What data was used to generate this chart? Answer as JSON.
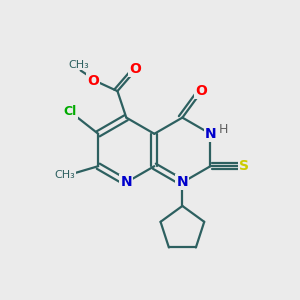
{
  "bg_color": "#ebebeb",
  "bond_color": "#2d6060",
  "atom_colors": {
    "O": "#ff0000",
    "N": "#0000cc",
    "S": "#cccc00",
    "Cl": "#00aa00",
    "C": "#2d6060",
    "H": "#606060"
  },
  "figsize": [
    3.0,
    3.0
  ],
  "dpi": 100
}
